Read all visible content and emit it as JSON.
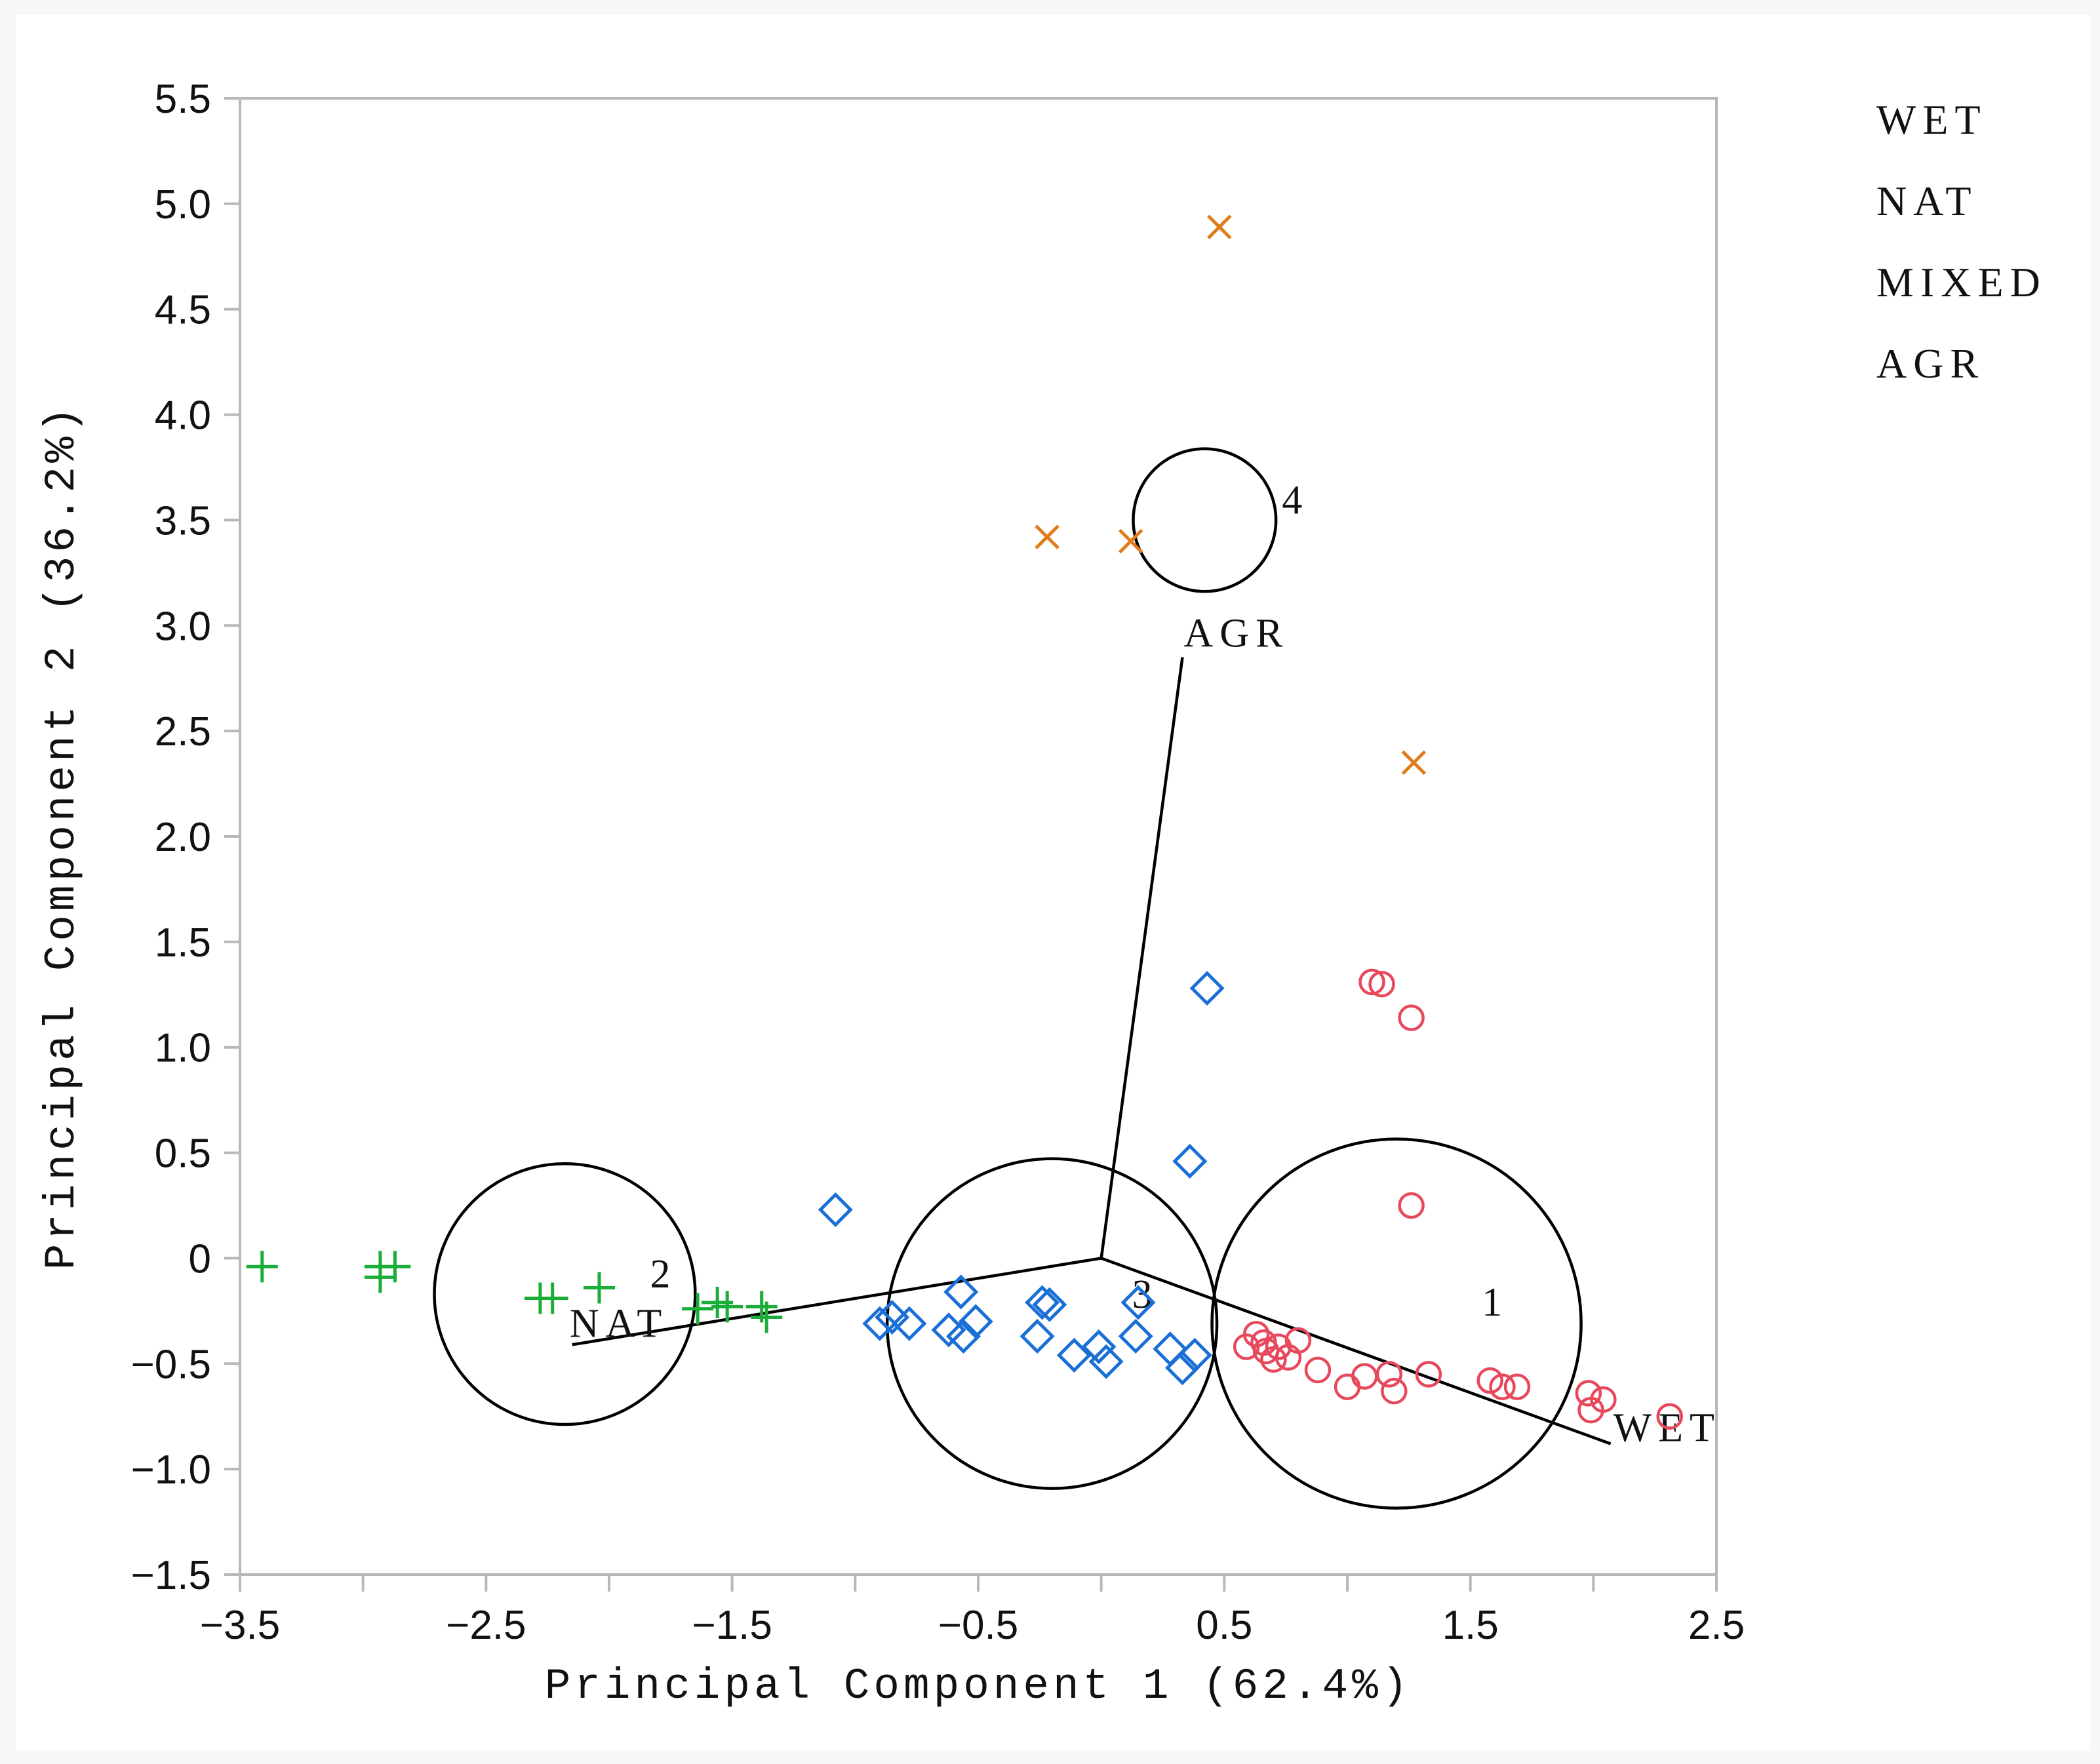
{
  "chart_data": {
    "type": "scatter",
    "title": "",
    "xlabel": "Principal Component 1 (62.4%)",
    "ylabel": "Principal Component 2 (36.2%)",
    "xlim": [
      -3.5,
      2.5
    ],
    "ylim": [
      -1.5,
      5.5
    ],
    "x_ticks": [
      -3.5,
      -3.0,
      -2.5,
      -2.0,
      -1.5,
      -1.0,
      -0.5,
      0.0,
      0.5,
      1.0,
      1.5,
      2.0,
      2.5
    ],
    "x_tick_labels": [
      "−3.5",
      "",
      "−2.5",
      "",
      "−1.5",
      "",
      "−0.5",
      "",
      "0.5",
      "",
      "1.5",
      "",
      "2.5"
    ],
    "y_ticks": [
      5.5,
      5.0,
      4.5,
      4.0,
      3.5,
      3.0,
      2.5,
      2.0,
      1.5,
      1.0,
      0.5,
      0.0,
      -0.5,
      -1.0,
      -1.5
    ],
    "y_tick_labels": [
      "5.5",
      "5.0",
      "4.5",
      "4.0",
      "3.5",
      "3.0",
      "2.5",
      "2.0",
      "1.5",
      "1.0",
      "0.5",
      "0",
      "−0.5",
      "−1.0",
      "−1.5"
    ],
    "grid": false,
    "legend": {
      "placement": "top-right-outside",
      "entries": [
        "WET",
        "NAT",
        "MIXED",
        "AGR"
      ]
    },
    "series": [
      {
        "name": "WET",
        "marker": "circle",
        "color": "#e8485c",
        "points": [
          [
            1.1,
            1.31
          ],
          [
            1.14,
            1.3
          ],
          [
            1.26,
            1.14
          ],
          [
            1.26,
            0.25
          ],
          [
            0.59,
            -0.42
          ],
          [
            0.63,
            -0.36
          ],
          [
            0.66,
            -0.4
          ],
          [
            0.67,
            -0.44
          ],
          [
            0.7,
            -0.48
          ],
          [
            0.72,
            -0.42
          ],
          [
            0.76,
            -0.47
          ],
          [
            0.8,
            -0.39
          ],
          [
            0.88,
            -0.53
          ],
          [
            1.0,
            -0.61
          ],
          [
            1.07,
            -0.56
          ],
          [
            1.17,
            -0.55
          ],
          [
            1.19,
            -0.63
          ],
          [
            1.33,
            -0.55
          ],
          [
            1.58,
            -0.58
          ],
          [
            1.63,
            -0.61
          ],
          [
            1.69,
            -0.61
          ],
          [
            1.98,
            -0.64
          ],
          [
            1.99,
            -0.72
          ],
          [
            2.04,
            -0.67
          ],
          [
            2.31,
            -0.75
          ]
        ]
      },
      {
        "name": "MIXED",
        "marker": "diamond",
        "color": "#1a6fd6",
        "points": [
          [
            0.43,
            1.28
          ],
          [
            0.36,
            0.46
          ],
          [
            -1.08,
            0.23
          ],
          [
            -0.9,
            -0.31
          ],
          [
            -0.85,
            -0.28
          ],
          [
            -0.78,
            -0.31
          ],
          [
            -0.62,
            -0.34
          ],
          [
            -0.57,
            -0.16
          ],
          [
            -0.56,
            -0.37
          ],
          [
            -0.51,
            -0.3
          ],
          [
            -0.26,
            -0.37
          ],
          [
            -0.24,
            -0.21
          ],
          [
            -0.21,
            -0.22
          ],
          [
            -0.11,
            -0.46
          ],
          [
            -0.01,
            -0.42
          ],
          [
            0.02,
            -0.49
          ],
          [
            0.14,
            -0.37
          ],
          [
            0.15,
            -0.21
          ],
          [
            0.28,
            -0.43
          ],
          [
            0.33,
            -0.52
          ],
          [
            0.38,
            -0.46
          ]
        ]
      },
      {
        "name": "AGR",
        "marker": "x",
        "color": "#e07b1a",
        "points": [
          [
            0.48,
            4.89
          ],
          [
            -0.22,
            3.42
          ],
          [
            0.12,
            3.4
          ],
          [
            1.27,
            2.35
          ]
        ]
      },
      {
        "name": "NAT",
        "marker": "plus",
        "color": "#1aad38",
        "points": [
          [
            -3.41,
            -0.04
          ],
          [
            -2.93,
            -0.04
          ],
          [
            -2.93,
            -0.09
          ],
          [
            -2.87,
            -0.04
          ],
          [
            -2.28,
            -0.19
          ],
          [
            -2.23,
            -0.19
          ],
          [
            -2.04,
            -0.14
          ],
          [
            -1.64,
            -0.24
          ],
          [
            -1.56,
            -0.21
          ],
          [
            -1.52,
            -0.23
          ],
          [
            -1.38,
            -0.23
          ],
          [
            -1.36,
            -0.28
          ]
        ]
      }
    ],
    "loading_vectors": [
      {
        "label": "AGR",
        "x": 0.33,
        "y": 2.85
      },
      {
        "label": "NAT",
        "x": -2.15,
        "y": -0.41
      },
      {
        "label": "WET",
        "x": 2.07,
        "y": -0.88
      }
    ],
    "cluster_circles": [
      {
        "label": "1",
        "cx": 1.2,
        "cy": -0.31,
        "r": 0.75
      },
      {
        "label": "2",
        "cx": -2.18,
        "cy": -0.17,
        "r": 0.53
      },
      {
        "label": "3",
        "cx": -0.2,
        "cy": -0.31,
        "r": 0.67
      },
      {
        "label": "4",
        "cx": 0.42,
        "cy": 3.5,
        "r": 0.29
      }
    ]
  }
}
